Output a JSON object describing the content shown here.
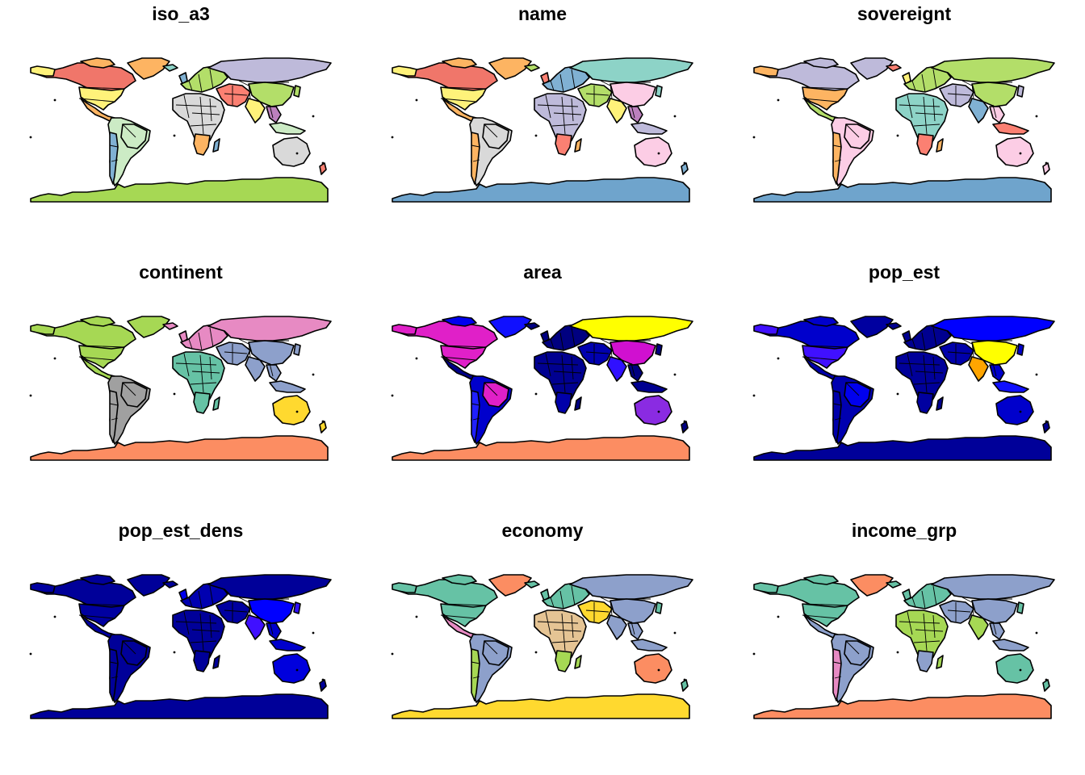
{
  "figure": {
    "panels": [
      {
        "title": "iso_a3",
        "fills": {
          "north_america": "#f0766a",
          "usa": "#fff27a",
          "canada_arctic": "#fdb462",
          "greenland": "#fdb462",
          "alaska": "#fff27a",
          "central_america": "#fdb462",
          "south_america": "#ccebc5",
          "brazil": "#ccebc5",
          "andes": "#80b1d3",
          "europe": "#b3de69",
          "africa": "#d9d9d9",
          "africa_south": "#fdb462",
          "madagascar": "#80b1d3",
          "middle_east": "#fb8072",
          "russia": "#bebada",
          "china": "#b3de69",
          "india": "#fff27a",
          "se_asia": "#bc80bd",
          "japan": "#b3de69",
          "australia": "#d9d9d9",
          "indonesia": "#ccebc5",
          "nz": "#fb8072",
          "antarctica": "#a6d854",
          "uk": "#80b1d3",
          "iceland": "#8dd3c7"
        }
      },
      {
        "title": "name",
        "fills": {
          "north_america": "#f0766a",
          "usa": "#fff27a",
          "canada_arctic": "#fdb462",
          "greenland": "#fdb462",
          "alaska": "#fff27a",
          "central_america": "#fdb462",
          "south_america": "#d9d9d9",
          "brazil": "#d9d9d9",
          "andes": "#fdb462",
          "europe": "#80b1d3",
          "africa": "#bebada",
          "africa_south": "#fb8072",
          "madagascar": "#fdb462",
          "middle_east": "#b3de69",
          "russia": "#8dd3c7",
          "china": "#fccde5",
          "india": "#fff27a",
          "se_asia": "#bc80bd",
          "japan": "#8dd3c7",
          "australia": "#fccde5",
          "indonesia": "#bebada",
          "nz": "#80b1d3",
          "antarctica": "#6fa4cc",
          "uk": "#fb8072",
          "iceland": "#b3de69"
        }
      },
      {
        "title": "sovereignt",
        "fills": {
          "north_america": "#bebada",
          "usa": "#fdb462",
          "canada_arctic": "#bebada",
          "greenland": "#bebada",
          "alaska": "#fdb462",
          "central_america": "#b3de69",
          "south_america": "#fccde5",
          "brazil": "#fccde5",
          "andes": "#fdb462",
          "europe": "#b3de69",
          "africa": "#8dd3c7",
          "africa_south": "#fb8072",
          "madagascar": "#fdb462",
          "middle_east": "#bebada",
          "russia": "#b3de69",
          "china": "#b3de69",
          "india": "#80b1d3",
          "se_asia": "#fccde5",
          "japan": "#bebada",
          "australia": "#fccde5",
          "indonesia": "#fb8072",
          "nz": "#fccde5",
          "antarctica": "#6fa4cc",
          "uk": "#fff27a",
          "iceland": "#fb8072"
        }
      },
      {
        "title": "continent",
        "fills": {
          "north_america": "#a6d854",
          "usa": "#a6d854",
          "canada_arctic": "#a6d854",
          "greenland": "#a6d854",
          "alaska": "#a6d854",
          "central_america": "#a6d854",
          "south_america": "#a0a0a0",
          "brazil": "#a0a0a0",
          "andes": "#a0a0a0",
          "europe": "#e78ac3",
          "africa": "#66c2a5",
          "africa_south": "#66c2a5",
          "madagascar": "#66c2a5",
          "middle_east": "#8da0cb",
          "russia": "#e78ac3",
          "china": "#8da0cb",
          "india": "#8da0cb",
          "se_asia": "#8da0cb",
          "japan": "#8da0cb",
          "australia": "#ffd92f",
          "indonesia": "#8da0cb",
          "nz": "#ffd92f",
          "antarctica": "#fc8d62",
          "uk": "#e78ac3",
          "iceland": "#e78ac3"
        }
      },
      {
        "title": "area",
        "fills": {
          "north_america": "#e020c8",
          "usa": "#e020c8",
          "canada_arctic": "#0000ee",
          "greenland": "#1010ff",
          "alaska": "#e020c8",
          "central_america": "#000088",
          "south_america": "#0000cc",
          "brazil": "#e020c8",
          "andes": "#2020ff",
          "europe": "#000080",
          "africa": "#000090",
          "africa_south": "#0000aa",
          "madagascar": "#000080",
          "middle_east": "#0000b0",
          "russia": "#ffff00",
          "china": "#d010d0",
          "india": "#3010ff",
          "se_asia": "#000080",
          "japan": "#000080",
          "australia": "#8a2be2",
          "indonesia": "#000090",
          "nz": "#000080",
          "antarctica": "#fc8d62",
          "uk": "#000080",
          "iceland": "#000080"
        }
      },
      {
        "title": "pop_est",
        "fills": {
          "north_america": "#0000cc",
          "usa": "#4010ff",
          "canada_arctic": "#0000cc",
          "greenland": "#0000a0",
          "alaska": "#4010ff",
          "central_america": "#0000aa",
          "south_america": "#0000b0",
          "brazil": "#0000ee",
          "andes": "#0000aa",
          "europe": "#000090",
          "africa": "#000099",
          "africa_south": "#0000a0",
          "madagascar": "#000090",
          "middle_east": "#0000aa",
          "russia": "#0000ff",
          "china": "#ffff00",
          "india": "#ffa500",
          "se_asia": "#0000cc",
          "japan": "#0000cc",
          "australia": "#0000cc",
          "indonesia": "#1010ff",
          "nz": "#000090",
          "antarctica": "#000099",
          "uk": "#000090",
          "iceland": "#000090"
        }
      },
      {
        "title": "pop_est_dens",
        "fills": {
          "north_america": "#000099",
          "usa": "#0000a0",
          "canada_arctic": "#000099",
          "greenland": "#000099",
          "alaska": "#0000a0",
          "central_america": "#0000a0",
          "south_america": "#000099",
          "brazil": "#000099",
          "andes": "#000099",
          "europe": "#0000b0",
          "africa": "#000099",
          "africa_south": "#000099",
          "madagascar": "#000099",
          "middle_east": "#0000a0",
          "russia": "#000099",
          "china": "#0000ff",
          "india": "#4010ff",
          "se_asia": "#0000cc",
          "japan": "#3010ff",
          "australia": "#0000dd",
          "indonesia": "#0000cc",
          "nz": "#000099",
          "antarctica": "#000099",
          "uk": "#0000ee",
          "iceland": "#000099"
        }
      },
      {
        "title": "economy",
        "fills": {
          "north_america": "#66c2a5",
          "usa": "#66c2a5",
          "canada_arctic": "#66c2a5",
          "greenland": "#fc8d62",
          "alaska": "#66c2a5",
          "central_america": "#e78ac3",
          "south_america": "#8da0cb",
          "brazil": "#8da0cb",
          "andes": "#a6d854",
          "europe": "#66c2a5",
          "africa": "#e5c494",
          "africa_south": "#a6d854",
          "madagascar": "#a6d854",
          "middle_east": "#ffd92f",
          "russia": "#8da0cb",
          "china": "#8da0cb",
          "india": "#8da0cb",
          "se_asia": "#8da0cb",
          "japan": "#66c2a5",
          "australia": "#fc8d62",
          "indonesia": "#8da0cb",
          "nz": "#66c2a5",
          "antarctica": "#ffd92f",
          "uk": "#66c2a5",
          "iceland": "#66c2a5"
        }
      },
      {
        "title": "income_grp",
        "fills": {
          "north_america": "#66c2a5",
          "usa": "#66c2a5",
          "canada_arctic": "#66c2a5",
          "greenland": "#fc8d62",
          "alaska": "#66c2a5",
          "central_america": "#8da0cb",
          "south_america": "#8da0cb",
          "brazil": "#8da0cb",
          "andes": "#e78ac3",
          "europe": "#66c2a5",
          "africa": "#a6d854",
          "africa_south": "#8da0cb",
          "madagascar": "#a6d854",
          "middle_east": "#8da0cb",
          "russia": "#8da0cb",
          "china": "#8da0cb",
          "india": "#a6d854",
          "se_asia": "#8da0cb",
          "japan": "#66c2a5",
          "australia": "#66c2a5",
          "indonesia": "#8da0cb",
          "nz": "#66c2a5",
          "antarctica": "#fc8d62",
          "uk": "#66c2a5",
          "iceland": "#66c2a5"
        }
      }
    ]
  }
}
